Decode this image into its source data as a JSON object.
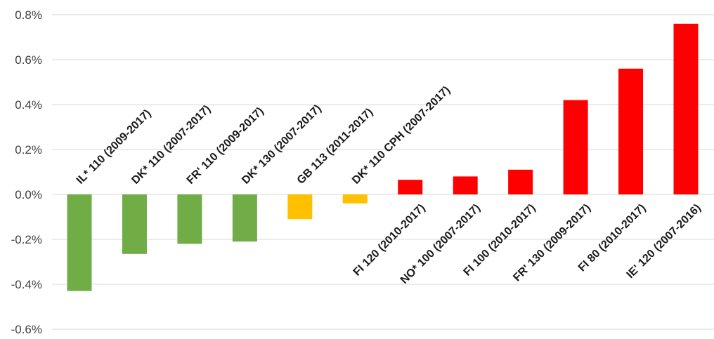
{
  "chart_data": {
    "type": "bar",
    "title": "",
    "xlabel": "",
    "ylabel": "",
    "ylim": [
      -0.6,
      0.8
    ],
    "yticks": [
      -0.6,
      -0.4,
      -0.2,
      0.0,
      0.2,
      0.4,
      0.6,
      0.8
    ],
    "ytick_labels": [
      "-0.6%",
      "-0.4%",
      "-0.2%",
      "0.0%",
      "0.2%",
      "0.4%",
      "0.6%",
      "0.8%"
    ],
    "grid": true,
    "legend": "none",
    "categories": [
      "IL* 110 (2009-2017)",
      "DK* 110 (2007-2017)",
      "FR' 110 (2009-2017)",
      "DK* 130 (2007-2017)",
      "GB 113 (2011-2017)",
      "DK* 110 CPH  (2007-2017)",
      "FI 120 (2010-2017)",
      "NO* 100 (2007-2017)",
      "FI 100 (2010-2017)",
      "FR' 130 (2009-2017)",
      "FI 80 (2010-2017)",
      "IE' 120 (2007-2016)"
    ],
    "values": [
      -0.43,
      -0.265,
      -0.22,
      -0.21,
      -0.11,
      -0.04,
      0.065,
      0.08,
      0.11,
      0.42,
      0.56,
      0.76
    ],
    "colors": [
      "#70ad47",
      "#70ad47",
      "#70ad47",
      "#70ad47",
      "#ffc000",
      "#ffc000",
      "#ff0000",
      "#ff0000",
      "#ff0000",
      "#ff0000",
      "#ff0000",
      "#ff0000"
    ]
  }
}
